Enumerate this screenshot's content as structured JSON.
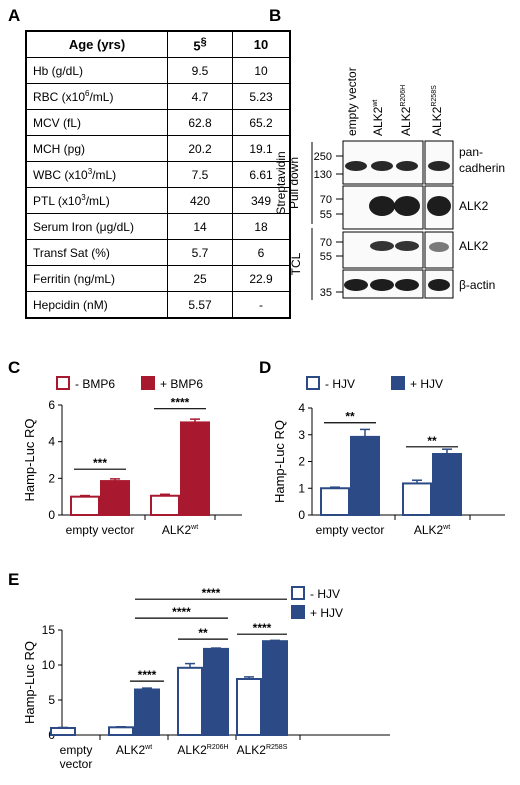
{
  "panels": {
    "a": "A",
    "b": "B",
    "c": "C",
    "d": "D",
    "e": "E"
  },
  "table": {
    "header": [
      "Age (yrs)",
      "5",
      "§",
      "10"
    ],
    "rows": [
      {
        "label": "Hb (g/dL)",
        "v5": "9.5",
        "v10": "10"
      },
      {
        "label": "RBC (x10",
        "sup": "6",
        "after": "/mL)",
        "v5": "4.7",
        "v10": "5.23"
      },
      {
        "label": "MCV (fL)",
        "v5": "62.8",
        "v10": "65.2"
      },
      {
        "label": "MCH (pg)",
        "v5": "20.2",
        "v10": "19.1"
      },
      {
        "label": "WBC (x10",
        "sup": "3",
        "after": "/mL)",
        "v5": "7.5",
        "v10": "6.61"
      },
      {
        "label": "PTL (x10",
        "sup": "3",
        "after": "/mL)",
        "v5": "420",
        "v10": "349"
      },
      {
        "label": "Serum Iron (μg/dL)",
        "v5": "14",
        "v10": "18"
      },
      {
        "label": "Transf Sat (%)",
        "v5": "5.7",
        "v10": "6"
      },
      {
        "label": "Ferritin (ng/mL)",
        "v5": "25",
        "v10": "22.9"
      },
      {
        "label": "Hepcidin (nM)",
        "v5": "5.57",
        "v10": "-"
      }
    ]
  },
  "blot": {
    "lanes": [
      {
        "base": "empty vector",
        "sup": ""
      },
      {
        "base": "ALK2",
        "sup": "wt"
      },
      {
        "base": "ALK2",
        "sup": "R206H"
      },
      {
        "base": "ALK2",
        "sup": "R258S"
      }
    ],
    "group1": "Streptavidin",
    "group1b": "Pull down",
    "group2": "TCL",
    "markers": [
      "250",
      "130",
      "70",
      "55",
      "70",
      "55",
      "35"
    ],
    "labels": [
      "pan-",
      "cadherin",
      "ALK2",
      "ALK2",
      "β-actin"
    ]
  },
  "chart_data": [
    {
      "panel": "C",
      "type": "bar",
      "ylabel": "Hamp-Luc RQ",
      "ylim": [
        0,
        6
      ],
      "yticks": [
        0,
        2,
        4,
        6
      ],
      "categories": [
        {
          "base": "empty vector",
          "sup": ""
        },
        {
          "base": "ALK2",
          "sup": "wt"
        }
      ],
      "series": [
        {
          "name": "- BMP6",
          "values": [
            1.0,
            1.05
          ],
          "errors": [
            0.06,
            0.08
          ],
          "fill": "#ffffff",
          "stroke": "#a8182e"
        },
        {
          "name": "+ BMP6",
          "values": [
            1.85,
            5.05
          ],
          "errors": [
            0.12,
            0.18
          ],
          "fill": "#a8182e",
          "stroke": "#a8182e"
        }
      ],
      "significance": [
        {
          "label": "***",
          "category": 0,
          "y": 2.5
        },
        {
          "label": "****",
          "category": 1,
          "y": 5.8
        }
      ]
    },
    {
      "panel": "D",
      "type": "bar",
      "ylabel": "Hamp-Luc RQ",
      "ylim": [
        0,
        4
      ],
      "yticks": [
        0,
        1,
        2,
        3,
        4
      ],
      "categories": [
        {
          "base": "empty vector",
          "sup": ""
        },
        {
          "base": "ALK2",
          "sup": "wt"
        }
      ],
      "series": [
        {
          "name": "- HJV",
          "values": [
            1.0,
            1.18
          ],
          "errors": [
            0.04,
            0.12
          ],
          "fill": "#ffffff",
          "stroke": "#2c4a86"
        },
        {
          "name": "+ HJV",
          "values": [
            2.92,
            2.28
          ],
          "errors": [
            0.28,
            0.18
          ],
          "fill": "#2c4a86",
          "stroke": "#2c4a86"
        }
      ],
      "significance": [
        {
          "label": "**",
          "category": 0,
          "y": 3.45
        },
        {
          "label": "**",
          "category": 1,
          "y": 2.55
        }
      ]
    },
    {
      "panel": "E",
      "type": "bar",
      "ylabel": "Hamp-Luc RQ",
      "ylim": [
        0,
        15
      ],
      "yticks": [
        0,
        5,
        10,
        15
      ],
      "categories": [
        {
          "base": "empty",
          "base2": "vector",
          "sup": ""
        },
        {
          "base": "ALK2",
          "sup": "wt"
        },
        {
          "base": "ALK2",
          "sup": "R206H"
        },
        {
          "base": "ALK2",
          "sup": "R258S"
        }
      ],
      "series": [
        {
          "name": "- HJV",
          "values": [
            1.0,
            1.1,
            9.6,
            8.0
          ],
          "errors": [
            0.08,
            0.08,
            0.6,
            0.3
          ],
          "fill": "#ffffff",
          "stroke": "#2c4a86"
        },
        {
          "name": "+ HJV",
          "values": [
            null,
            6.5,
            12.3,
            13.4
          ],
          "errors": [
            null,
            0.2,
            0.12,
            0.12
          ],
          "fill": "#2c4a86",
          "stroke": "#2c4a86"
        }
      ],
      "significance": [
        {
          "label": "****",
          "from": [
            1,
            1
          ],
          "to": [
            1,
            1
          ],
          "y": 7.7
        },
        {
          "label": "**",
          "from": [
            2,
            0
          ],
          "to": [
            2,
            1
          ],
          "y": 13.7
        },
        {
          "label": "****",
          "from": [
            3,
            0
          ],
          "to": [
            3,
            1
          ],
          "y": 14.4
        },
        {
          "label": "****",
          "from": [
            1,
            1
          ],
          "to": [
            2,
            1
          ],
          "y": 16.7
        },
        {
          "label": "****",
          "from": [
            1,
            1
          ],
          "to": [
            3,
            1
          ],
          "y": 19.4
        }
      ]
    }
  ]
}
